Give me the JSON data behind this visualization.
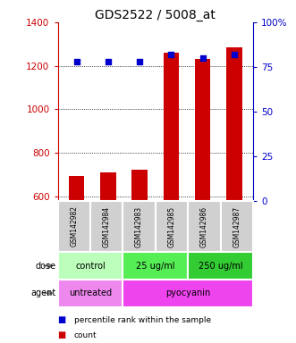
{
  "title": "GDS2522 / 5008_at",
  "samples": [
    "GSM142982",
    "GSM142984",
    "GSM142983",
    "GSM142985",
    "GSM142986",
    "GSM142987"
  ],
  "counts": [
    692,
    708,
    723,
    1260,
    1230,
    1285
  ],
  "percentiles": [
    78,
    78,
    78,
    82,
    80,
    82
  ],
  "ylim_left": [
    580,
    1400
  ],
  "ylim_right": [
    0,
    100
  ],
  "yticks_left": [
    600,
    800,
    1000,
    1200,
    1400
  ],
  "yticks_right": [
    0,
    25,
    50,
    75,
    100
  ],
  "ytick_labels_right": [
    "0",
    "25",
    "50",
    "75",
    "100%"
  ],
  "bar_color": "#cc0000",
  "dot_color": "#0000cc",
  "dose_labels": [
    {
      "label": "control",
      "span": [
        0,
        2
      ],
      "color": "#bbffbb"
    },
    {
      "label": "25 ug/ml",
      "span": [
        2,
        4
      ],
      "color": "#55ee55"
    },
    {
      "label": "250 ug/ml",
      "span": [
        4,
        6
      ],
      "color": "#33cc33"
    }
  ],
  "agent_labels": [
    {
      "label": "untreated",
      "span": [
        0,
        2
      ],
      "color": "#ee88ee"
    },
    {
      "label": "pyocyanin",
      "span": [
        2,
        6
      ],
      "color": "#ee44ee"
    }
  ],
  "dose_row_label": "dose",
  "agent_row_label": "agent",
  "legend_count_label": "count",
  "legend_pct_label": "percentile rank within the sample",
  "grid_color": "black",
  "title_fontsize": 10,
  "tick_fontsize": 7.5,
  "anno_fontsize": 7,
  "sample_fontsize": 5.5
}
